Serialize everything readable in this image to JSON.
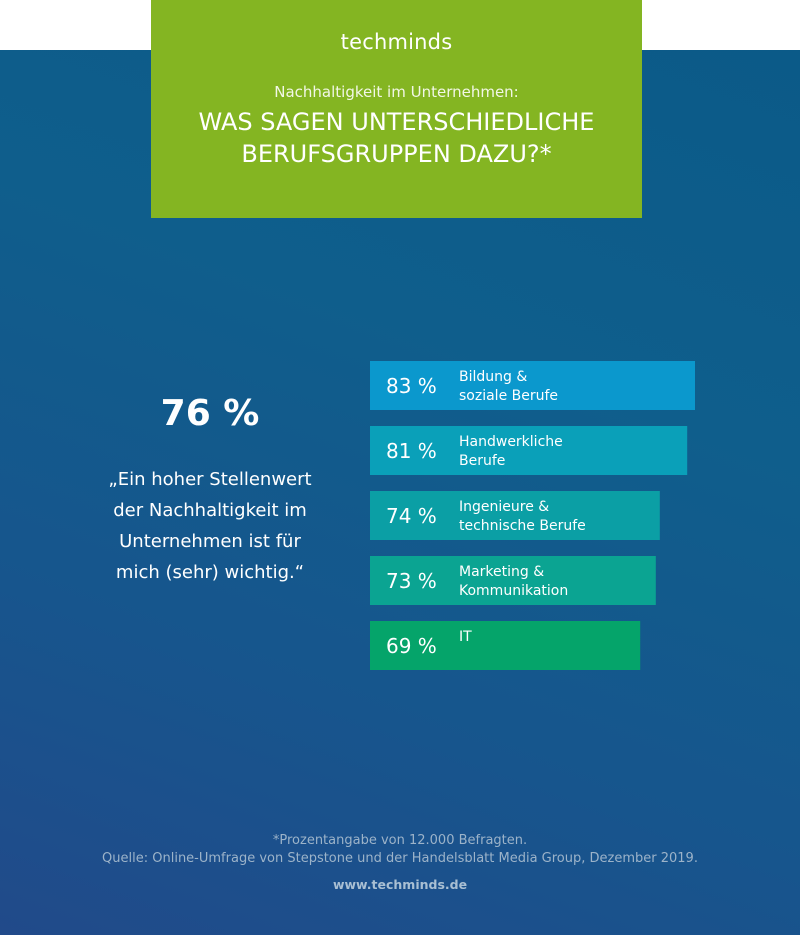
{
  "header": {
    "logo": "techminds",
    "subtitle": "Nachhaltigkeit im Unternehmen:",
    "title_line1": "WAS SAGEN UNTERSCHIEDLICHE",
    "title_line2": "BERUFSGRUPPEN DAZU?*"
  },
  "highlight": {
    "value": "76 %",
    "quote_lines": [
      "„Ein hoher Stellenwert",
      "der Nachhaltigkeit  im",
      "Unternehmen ist für",
      "mich (sehr) wichtig.“"
    ]
  },
  "chart_data": {
    "type": "bar",
    "orientation": "horizontal",
    "unit": "%",
    "categories": [
      [
        "Bildung &",
        "soziale Berufe"
      ],
      [
        "Handwerkliche",
        "Berufe"
      ],
      [
        "Ingenieure &",
        "technische Berufe"
      ],
      [
        "Marketing &",
        "Kommunikation"
      ],
      [
        "IT"
      ]
    ],
    "values": [
      83,
      81,
      74,
      73,
      69
    ],
    "value_labels": [
      "83 %",
      "81 %",
      "74 %",
      "73 %",
      "69 %"
    ],
    "colors": [
      "#0b98cd",
      "#0aa0b9",
      "#0b9fa5",
      "#0ba492",
      "#05a46a"
    ],
    "grid": false,
    "legend": "none"
  },
  "footer": {
    "note": "*Prozentangabe von 12.000 Befragten.",
    "source": "Quelle: Online-Umfrage von Stepstone und der Handelsblatt Media Group, Dezember 2019.",
    "website": "www.techminds.de"
  }
}
